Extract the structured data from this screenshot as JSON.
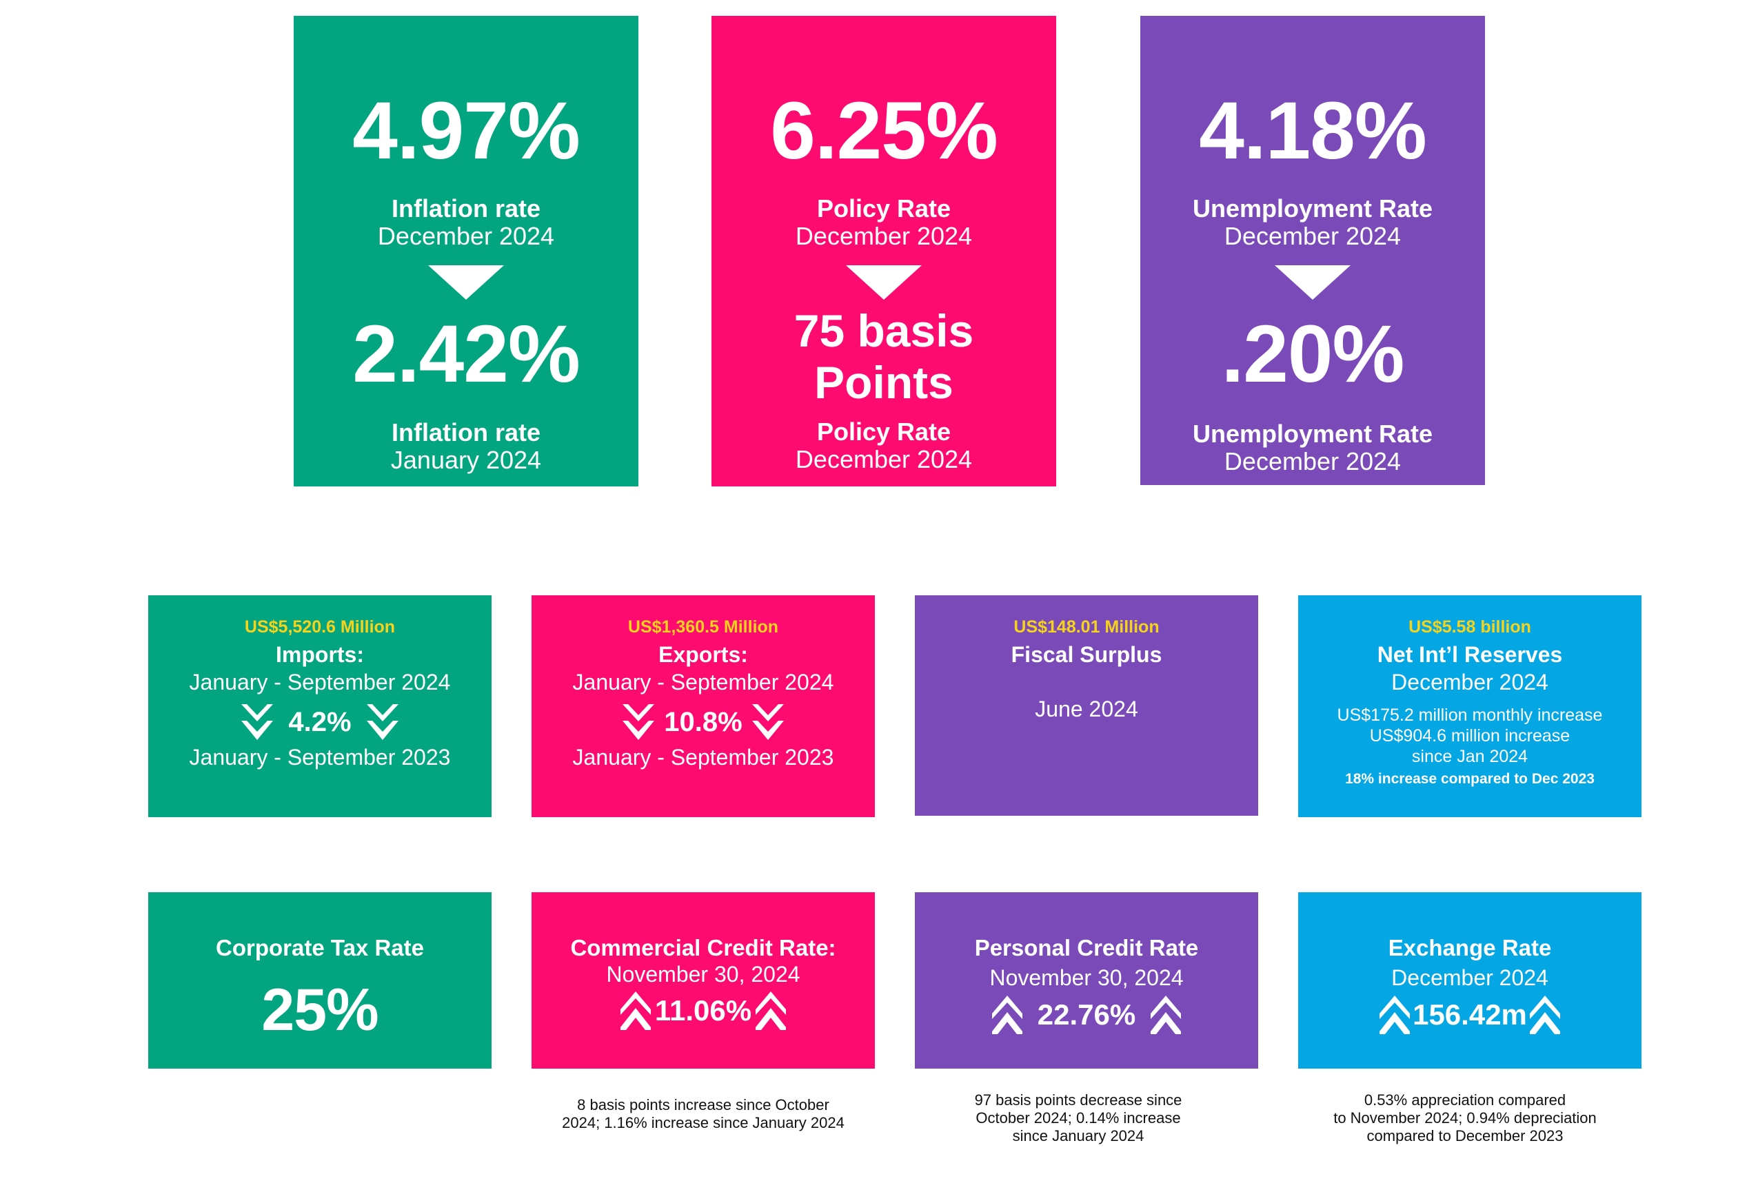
{
  "top_cards": [
    {
      "color": "#02a57f",
      "value1": "4.97%",
      "label1": "Inflation rate",
      "date1": "December 2024",
      "value2": "2.42%",
      "label2": "Inflation rate",
      "date2": "January 2024",
      "indicator": "down-triangle-icon"
    },
    {
      "color": "#fe0b71",
      "value1": "6.25%",
      "label1": "Policy Rate",
      "date1": "December 2024",
      "value2_line1": "75 basis",
      "value2_line2": "Points",
      "label2": "Policy Rate",
      "date2": "December 2024",
      "indicator": "down-triangle-icon"
    },
    {
      "color": "#7a4bb8",
      "value1": "4.18%",
      "label1": "Unemployment  Rate",
      "date1": "December 2024",
      "value2": ".20%",
      "label2": "Unemployment  Rate",
      "date2": "December 2024",
      "indicator": "down-triangle-icon"
    }
  ],
  "middle_cards": [
    {
      "color": "#02a57f",
      "amount": "US$5,520.6 Million",
      "title": "Imports:",
      "period1": "January - September 2024",
      "change": "4.2%",
      "period2": "January - September 2023",
      "indicator": "double-chevron-down-icon"
    },
    {
      "color": "#fe0b71",
      "amount": "US$1,360.5 Million",
      "title": "Exports:",
      "period1": "January - September 2024",
      "change": "10.8%",
      "period2": "January - September 2023",
      "indicator": "double-chevron-down-icon"
    },
    {
      "color": "#7a4bb8",
      "amount": "US$148.01 Million",
      "title": "Fiscal Surplus",
      "period1": "June 2024"
    },
    {
      "color": "#04a6e3",
      "amount": "US$5.58 billion",
      "title": "Net Int’l Reserves",
      "period1": "December 2024",
      "detail1": "US$175.2 million monthly increase",
      "detail2": "US$904.6 million increase",
      "detail3": "since Jan 2024",
      "detail4": "18% increase compared to Dec 2023"
    }
  ],
  "bottom_cards": [
    {
      "color": "#02a57f",
      "title": "Corporate Tax Rate",
      "value": "25%"
    },
    {
      "color": "#fe0b71",
      "title": "Commercial Credit Rate:",
      "date": "November 30, 2024",
      "value": "11.06%",
      "indicator": "double-chevron-up-icon",
      "note1": "8 basis points  increase since October",
      "note2": "2024; 1.16% increase since January 2024"
    },
    {
      "color": "#7a4bb8",
      "title": "Personal Credit Rate",
      "date": "November 30, 2024",
      "value": "22.76%",
      "indicator": "double-chevron-up-icon",
      "note1": "97 basis points decrease since",
      "note2": "October 2024; 0.14% increase",
      "note3": "since January 2024"
    },
    {
      "color": "#04a6e3",
      "title": "Exchange Rate",
      "date": "December 2024",
      "value": "156.42m",
      "indicator": "double-chevron-up-icon",
      "note1": "0.53% appreciation compared",
      "note2": "to November 2024; 0.94% depreciation",
      "note3": "compared to December 2023"
    }
  ]
}
